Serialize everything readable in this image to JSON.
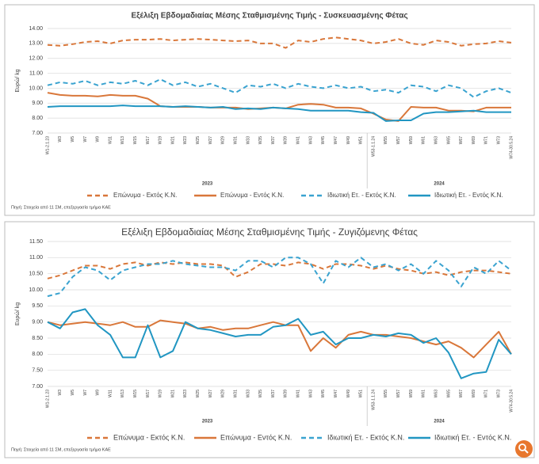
{
  "chart_data": [
    {
      "type": "line",
      "title": "Εξέλιξη Εβδομαδιαίας Μέσης Σταθμισμένης Τιμής - Συσκευασμένης Φέτας",
      "y_label": "Ευρώ/ kg",
      "source": "Πηγή: Στοιχεία από 11 ΣΜ, επεξεργασία τμήμα ΚΑΕ",
      "year_labels": [
        "2023",
        "2024"
      ],
      "categories": [
        "W1-2.1.23",
        "W3",
        "W5",
        "W7",
        "W9",
        "W11",
        "W13",
        "W15",
        "W17",
        "W19",
        "W21",
        "W23",
        "W25",
        "W27",
        "W29",
        "W31",
        "W33",
        "W35",
        "W37",
        "W39",
        "W41",
        "W43",
        "W45",
        "W47",
        "W49",
        "W51",
        "W53-1.1.24",
        "W55",
        "W57",
        "W59",
        "W61",
        "W63",
        "W65",
        "W67",
        "W69",
        "W71",
        "W73",
        "W74-30.5.24"
      ],
      "ylim": [
        7,
        14
      ],
      "yticks": [
        {
          "value": 7,
          "label": "7.00"
        },
        {
          "value": 8,
          "label": "8.00"
        },
        {
          "value": 9,
          "label": "9.00"
        },
        {
          "value": 10,
          "label": "10.00"
        },
        {
          "value": 11,
          "label": "11.00"
        },
        {
          "value": 12,
          "label": "12.00"
        },
        {
          "value": 13,
          "label": "13.00"
        },
        {
          "value": 14,
          "label": "14.00"
        }
      ],
      "grid": true,
      "series": [
        {
          "name": "Επώνυμα - Εκτός Κ.Ν.",
          "color": "#d9773a",
          "dashed": true,
          "values": [
            12.9,
            12.85,
            12.95,
            13.1,
            13.15,
            13.0,
            13.2,
            13.25,
            13.25,
            13.3,
            13.2,
            13.25,
            13.3,
            13.25,
            13.2,
            13.15,
            13.2,
            13.0,
            13.0,
            12.7,
            13.2,
            13.1,
            13.3,
            13.4,
            13.3,
            13.2,
            13.0,
            13.1,
            13.3,
            13.0,
            12.9,
            13.2,
            13.1,
            12.85,
            12.95,
            13.0,
            13.15,
            13.05
          ]
        },
        {
          "name": "Επώνυμα - Εντός Κ.Ν.",
          "color": "#d9773a",
          "dashed": false,
          "values": [
            9.7,
            9.55,
            9.5,
            9.5,
            9.45,
            9.55,
            9.5,
            9.5,
            9.3,
            8.8,
            8.75,
            8.75,
            8.75,
            8.7,
            8.7,
            8.7,
            8.6,
            8.65,
            8.7,
            8.65,
            8.9,
            8.95,
            8.9,
            8.7,
            8.7,
            8.65,
            8.3,
            7.9,
            7.8,
            8.75,
            8.7,
            8.7,
            8.5,
            8.5,
            8.45,
            8.7,
            8.7,
            8.7
          ]
        },
        {
          "name": "Ιδιωτική Ετ. - Εκτός Κ.Ν.",
          "color": "#3aa3d0",
          "dashed": true,
          "values": [
            10.2,
            10.4,
            10.3,
            10.5,
            10.2,
            10.4,
            10.3,
            10.5,
            10.2,
            10.6,
            10.2,
            10.4,
            10.1,
            10.3,
            10.0,
            9.7,
            10.2,
            10.1,
            10.3,
            10.0,
            10.3,
            10.1,
            10.0,
            10.2,
            10.0,
            10.1,
            9.8,
            9.9,
            9.7,
            10.2,
            10.1,
            9.8,
            10.2,
            10.0,
            9.4,
            9.8,
            10.0,
            9.7
          ]
        },
        {
          "name": "Ιδιωτική Ετ. - Εντός Κ.Ν.",
          "color": "#2196c2",
          "dashed": false,
          "values": [
            8.75,
            8.8,
            8.8,
            8.8,
            8.8,
            8.8,
            8.85,
            8.8,
            8.8,
            8.8,
            8.75,
            8.8,
            8.75,
            8.7,
            8.75,
            8.6,
            8.65,
            8.6,
            8.7,
            8.65,
            8.6,
            8.5,
            8.5,
            8.5,
            8.5,
            8.4,
            8.35,
            7.8,
            7.85,
            7.85,
            8.3,
            8.4,
            8.4,
            8.45,
            8.5,
            8.4,
            8.4,
            8.4
          ]
        }
      ]
    },
    {
      "type": "line",
      "title": "Εξέλιξη Εβδομαδιαίας Μέσης Σταθμισμένης Τιμής - Ζυγιζόμενης Φέτας",
      "y_label": "Ευρώ/ kg",
      "source": "Πηγή: Στοιχεία από 11 ΣΜ, επεξεργασία τμήμα ΚΑΕ",
      "year_labels": [
        "2023",
        "2024"
      ],
      "categories": [
        "W1-2.1.23",
        "W3",
        "W5",
        "W7",
        "W9",
        "W11",
        "W13",
        "W15",
        "W17",
        "W19",
        "W21",
        "W23",
        "W25",
        "W27",
        "W29",
        "W31",
        "W33",
        "W35",
        "W37",
        "W39",
        "W41",
        "W43",
        "W45",
        "W47",
        "W49",
        "W51",
        "W53-1.1.24",
        "W55",
        "W57",
        "W59",
        "W61",
        "W63",
        "W65",
        "W67",
        "W69",
        "W71",
        "W73",
        "W74-30.5.24"
      ],
      "ylim": [
        7,
        11.5
      ],
      "yticks": [
        {
          "value": 7,
          "label": "7.00"
        },
        {
          "value": 7.5,
          "label": "7.50"
        },
        {
          "value": 8,
          "label": "8.00"
        },
        {
          "value": 8.5,
          "label": "8.50"
        },
        {
          "value": 9,
          "label": "9.00"
        },
        {
          "value": 9.5,
          "label": "9.50"
        },
        {
          "value": 10,
          "label": "10.00"
        },
        {
          "value": 10.5,
          "label": "10.50"
        },
        {
          "value": 11,
          "label": "11.00"
        },
        {
          "value": 11.5,
          "label": "11.50"
        }
      ],
      "grid": true,
      "series": [
        {
          "name": "Επώνυμα - Εκτός Κ.Ν.",
          "color": "#d9773a",
          "dashed": true,
          "values": [
            10.35,
            10.45,
            10.6,
            10.75,
            10.75,
            10.65,
            10.8,
            10.85,
            10.75,
            10.85,
            10.8,
            10.85,
            10.8,
            10.8,
            10.75,
            10.4,
            10.55,
            10.8,
            10.8,
            10.75,
            10.85,
            10.8,
            10.65,
            10.8,
            10.8,
            10.75,
            10.65,
            10.75,
            10.65,
            10.6,
            10.5,
            10.55,
            10.45,
            10.55,
            10.6,
            10.6,
            10.55,
            10.5
          ]
        },
        {
          "name": "Επώνυμα - Εντός Κ.Ν.",
          "color": "#d9773a",
          "dashed": false,
          "values": [
            9.0,
            8.9,
            8.95,
            9.0,
            8.95,
            8.9,
            9.0,
            8.85,
            8.85,
            9.05,
            9.0,
            8.95,
            8.8,
            8.85,
            8.75,
            8.8,
            8.8,
            8.9,
            9.0,
            8.9,
            8.9,
            8.1,
            8.5,
            8.2,
            8.6,
            8.7,
            8.6,
            8.6,
            8.55,
            8.5,
            8.4,
            8.3,
            8.4,
            8.2,
            7.9,
            8.3,
            8.7,
            8.0
          ]
        },
        {
          "name": "Ιδιωτική Ετ. - Εκτός Κ.Ν.",
          "color": "#3aa3d0",
          "dashed": true,
          "values": [
            9.8,
            9.9,
            10.4,
            10.7,
            10.6,
            10.3,
            10.6,
            10.7,
            10.8,
            10.8,
            10.9,
            10.8,
            10.75,
            10.7,
            10.7,
            10.6,
            10.9,
            10.9,
            10.7,
            11.0,
            11.0,
            10.8,
            10.2,
            10.9,
            10.7,
            11.0,
            10.7,
            10.8,
            10.6,
            10.8,
            10.5,
            10.9,
            10.6,
            10.1,
            10.7,
            10.5,
            10.9,
            10.6
          ]
        },
        {
          "name": "Ιδιωτική Ετ. - Εντός Κ.Ν.",
          "color": "#2196c2",
          "dashed": false,
          "values": [
            9.0,
            8.8,
            9.3,
            9.4,
            8.9,
            8.6,
            7.9,
            7.9,
            8.9,
            7.9,
            8.1,
            9.0,
            8.8,
            8.75,
            8.65,
            8.55,
            8.6,
            8.6,
            8.85,
            8.9,
            9.1,
            8.6,
            8.7,
            8.3,
            8.5,
            8.5,
            8.6,
            8.55,
            8.65,
            8.6,
            8.35,
            8.5,
            8.05,
            7.25,
            7.4,
            7.45,
            8.45,
            8.0
          ]
        }
      ]
    }
  ]
}
